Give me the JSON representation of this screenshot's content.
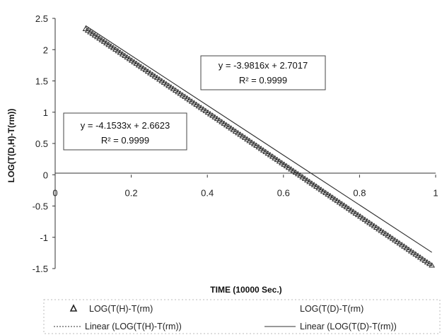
{
  "chart_data": {
    "type": "scatter",
    "xlabel": "TIME (10000 Sec.)",
    "ylabel": "LOG(T(D,H)-T(rm))",
    "xlim": [
      0,
      1
    ],
    "ylim": [
      -1.5,
      2.5
    ],
    "x_ticks": [
      "0",
      "0.2",
      "0.4",
      "0.6",
      "0.8",
      "1"
    ],
    "y_ticks": [
      "2.5",
      "2",
      "1.5",
      "1",
      "0.5",
      "0",
      "-0.5",
      "-1",
      "-1.5"
    ],
    "grid": false,
    "legend_position": "bottom",
    "series": [
      {
        "name": "LOG(T(H)-T(rm)",
        "marker": "triangle",
        "x_range": [
          0.08,
          0.99
        ],
        "slope": -4.1533,
        "intercept": 2.6623
      },
      {
        "name": "LOG(T(D)-T(rm)",
        "marker": "none",
        "x_range": [
          0.08,
          0.99
        ],
        "slope": -3.9816,
        "intercept": 2.7017
      },
      {
        "name": "Linear (LOG(T(H)-T(rm))",
        "line": "dotted",
        "x_range": [
          0.08,
          0.99
        ],
        "slope": -4.1533,
        "intercept": 2.6623
      },
      {
        "name": "Linear (LOG(T(D)-T(rm))",
        "line": "solid",
        "x_range": [
          0.08,
          0.99
        ],
        "slope": -3.9816,
        "intercept": 2.7017
      }
    ],
    "annotations": [
      {
        "equation": "y = -3.9816x + 2.7017",
        "r_squared": "R² = 0.9999"
      },
      {
        "equation": "y = -4.1533x + 2.6623",
        "r_squared": "R² = 0.9999"
      }
    ]
  },
  "colors": {
    "markers": "#2a2a2a",
    "lines": "#333333",
    "axis": "#333333"
  }
}
